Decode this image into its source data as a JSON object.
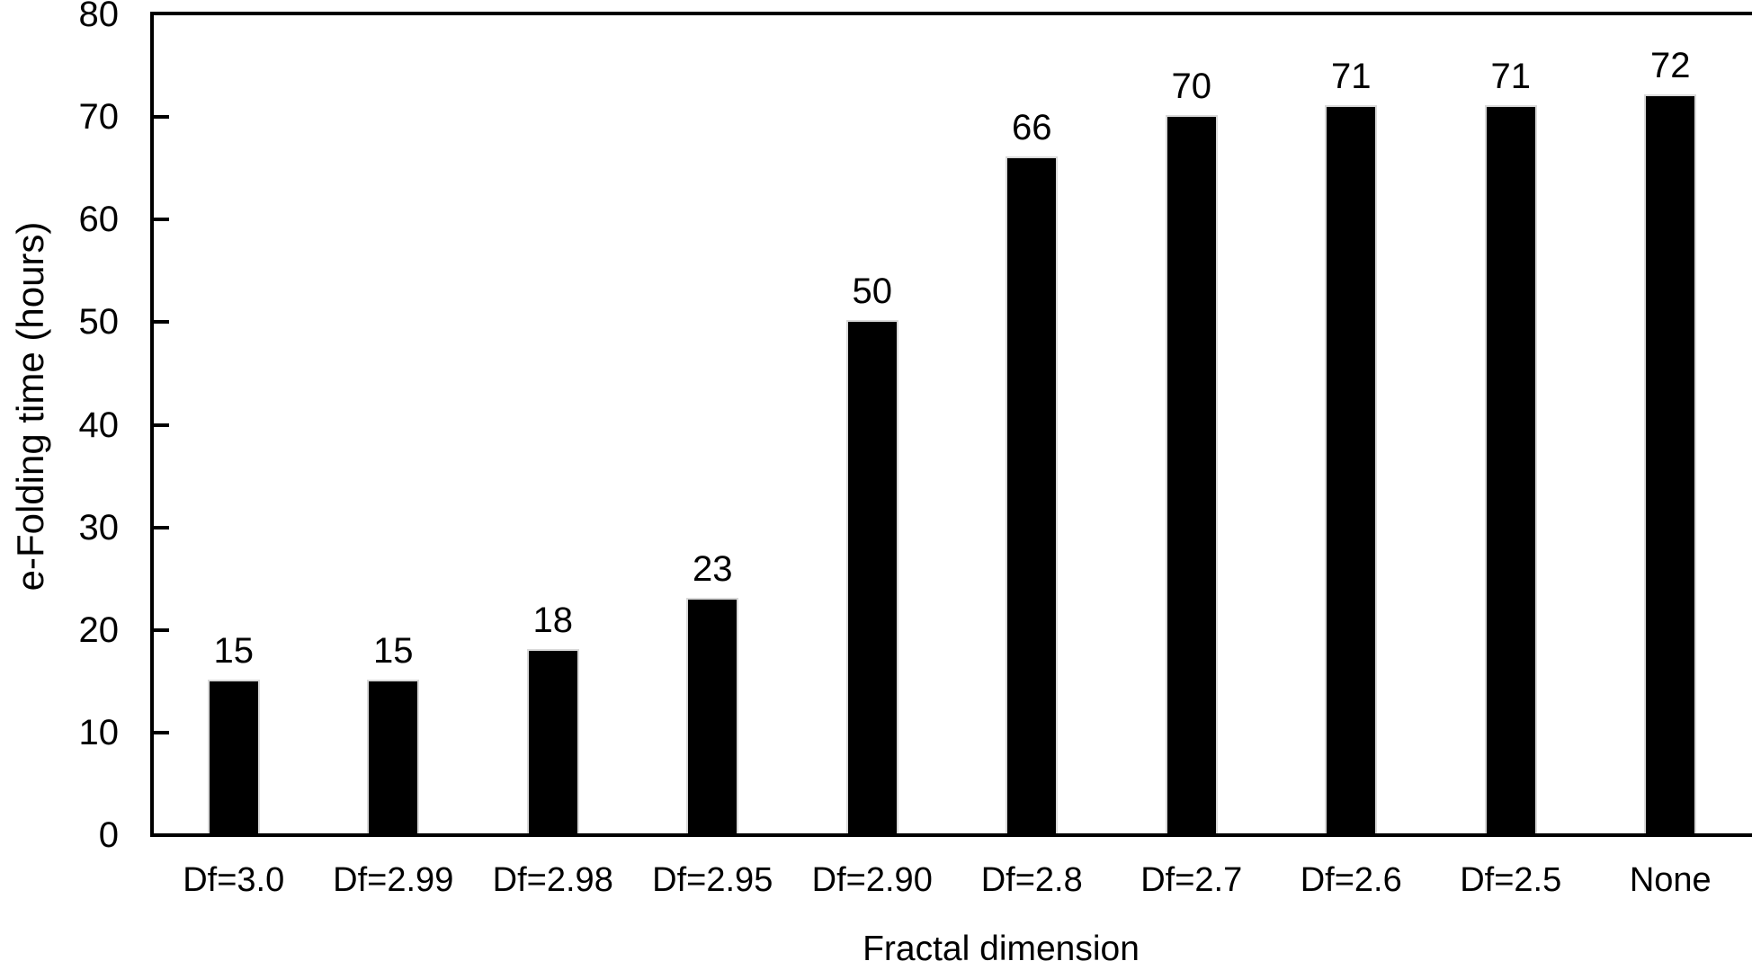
{
  "chart_data": {
    "type": "bar",
    "title": "",
    "xlabel": "Fractal dimension",
    "ylabel": "e-Folding time (hours)",
    "categories": [
      "Df=3.0",
      "Df=2.99",
      "Df=2.98",
      "Df=2.95",
      "Df=2.90",
      "Df=2.8",
      "Df=2.7",
      "Df=2.6",
      "Df=2.5",
      "None"
    ],
    "values": [
      15,
      15,
      18,
      23,
      50,
      66,
      70,
      71,
      71,
      72
    ],
    "data_labels": [
      15,
      15,
      18,
      23,
      50,
      66,
      70,
      71,
      71,
      72
    ],
    "ylim": [
      0,
      80
    ],
    "yticks": [
      0,
      10,
      20,
      30,
      40,
      50,
      60,
      70,
      80
    ],
    "grid": false,
    "legend": false,
    "bar_color": "#000000",
    "bar_border_color": "#d9d9d9",
    "axis_color": "#000000",
    "text_color": "#000000"
  }
}
